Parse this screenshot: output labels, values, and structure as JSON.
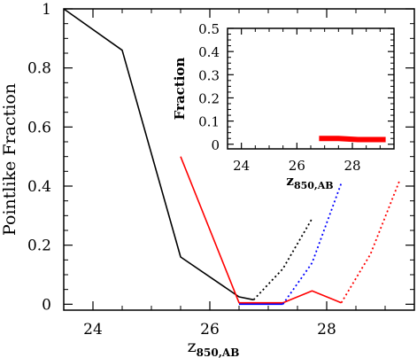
{
  "chart_data": [
    {
      "type": "line",
      "xlabel": "z",
      "xlabel_sub": "850,AB",
      "ylabel": "Pointlike Fraction",
      "xlim": [
        23.5,
        29.5
      ],
      "ylim": [
        -0.02,
        1.0
      ],
      "xticks": [
        "24",
        "26",
        "28"
      ],
      "xtick_values": [
        24,
        26,
        28
      ],
      "yticks": [
        "0",
        "0.2",
        "0.4",
        "0.6",
        "0.8",
        "1"
      ],
      "ytick_values": [
        0,
        0.2,
        0.4,
        0.6,
        0.8,
        1.0
      ],
      "colors": {
        "black": "#000000",
        "red": "#ff0000",
        "blue": "#0000ff"
      },
      "series": [
        {
          "color": "black",
          "style": "solid",
          "x": [
            23.5,
            24.5,
            25.5,
            26.5,
            26.75
          ],
          "y": [
            1.0,
            0.86,
            0.16,
            0.025,
            0.015
          ]
        },
        {
          "color": "black",
          "style": "dotted",
          "x": [
            26.75,
            27.25,
            27.75
          ],
          "y": [
            0.015,
            0.12,
            0.29
          ]
        },
        {
          "color": "red",
          "style": "solid",
          "x": [
            25.5,
            26.5,
            27.25,
            27.75,
            28.25
          ],
          "y": [
            0.5,
            0.005,
            0.005,
            0.045,
            0.005
          ]
        },
        {
          "color": "red",
          "style": "dotted",
          "x": [
            28.25,
            28.75,
            29.25
          ],
          "y": [
            0.005,
            0.17,
            0.42
          ]
        },
        {
          "color": "blue",
          "style": "solid",
          "x": [
            26.5,
            27.25
          ],
          "y": [
            0.0,
            0.0
          ]
        },
        {
          "color": "blue",
          "style": "dotted",
          "x": [
            27.25,
            27.75,
            28.25
          ],
          "y": [
            0.0,
            0.14,
            0.41
          ]
        }
      ]
    },
    {
      "type": "line",
      "xlabel": "z",
      "xlabel_sub": "850,AB",
      "ylabel": "Fraction",
      "xlim": [
        23.5,
        29.5
      ],
      "ylim": [
        -0.02,
        0.5
      ],
      "xticks": [
        "24",
        "26",
        "28"
      ],
      "xtick_values": [
        24,
        26,
        28
      ],
      "yticks": [
        "0",
        "0.1",
        "0.2",
        "0.3",
        "0.4",
        "0.5"
      ],
      "ytick_values": [
        0,
        0.1,
        0.2,
        0.3,
        0.4,
        0.5
      ],
      "series": [
        {
          "color": "red",
          "style": "thick",
          "x": [
            26.8,
            27.5,
            28.2,
            29.2
          ],
          "y": [
            0.025,
            0.025,
            0.02,
            0.02
          ]
        }
      ]
    }
  ]
}
